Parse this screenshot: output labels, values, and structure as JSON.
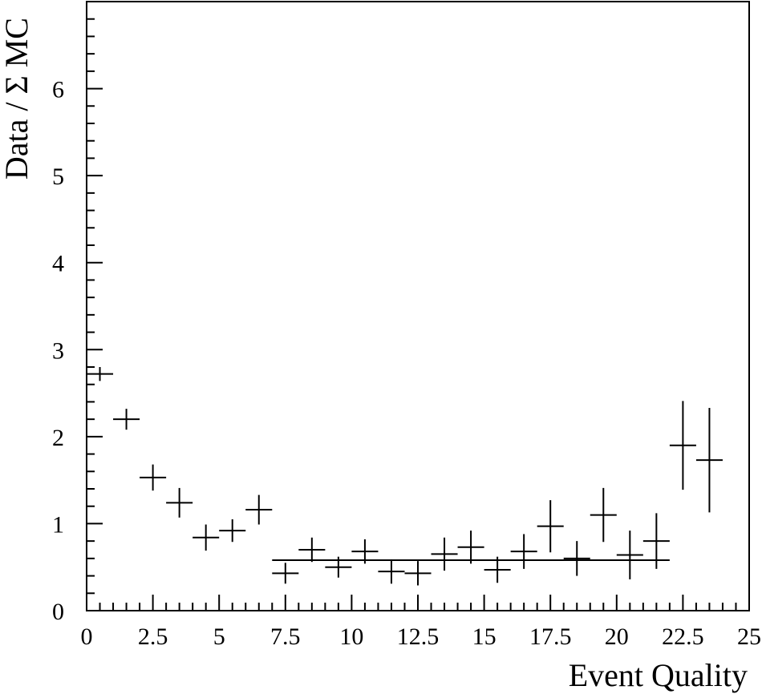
{
  "chart_data": {
    "type": "scatter",
    "title": "",
    "xlabel": "Event Quality",
    "ylabel": "Data / Σ MC",
    "xlim": [
      0,
      25
    ],
    "ylim": [
      0,
      7
    ],
    "x_ticks": [
      "0",
      "2.5",
      "5",
      "7.5",
      "10",
      "12.5",
      "15",
      "17.5",
      "20",
      "22.5",
      "25"
    ],
    "y_ticks": [
      "0",
      "1",
      "2",
      "3",
      "4",
      "5",
      "6"
    ],
    "grid": false,
    "series": [
      {
        "style": "error-bars",
        "x": [
          0.5,
          1.5,
          2.5,
          3.5,
          4.5,
          5.5,
          6.5,
          7.5,
          8.5,
          9.5,
          10.5,
          11.5,
          12.5,
          13.5,
          14.5,
          15.5,
          16.5,
          17.5,
          18.5,
          19.5,
          20.5,
          21.5,
          22.5,
          23.5
        ],
        "x_half_width": 0.5,
        "y": [
          2.72,
          2.2,
          1.53,
          1.24,
          0.84,
          0.92,
          1.16,
          0.43,
          0.7,
          0.5,
          0.68,
          0.45,
          0.43,
          0.65,
          0.73,
          0.47,
          0.68,
          0.97,
          0.6,
          1.1,
          0.64,
          0.8,
          1.9,
          1.73
        ],
        "y_err": [
          0.08,
          0.12,
          0.15,
          0.17,
          0.15,
          0.13,
          0.17,
          0.12,
          0.14,
          0.12,
          0.14,
          0.14,
          0.14,
          0.19,
          0.19,
          0.15,
          0.2,
          0.3,
          0.2,
          0.31,
          0.28,
          0.32,
          0.51,
          0.6
        ]
      },
      {
        "style": "line",
        "x": [
          7,
          22
        ],
        "y": [
          0.58,
          0.58
        ]
      }
    ]
  }
}
